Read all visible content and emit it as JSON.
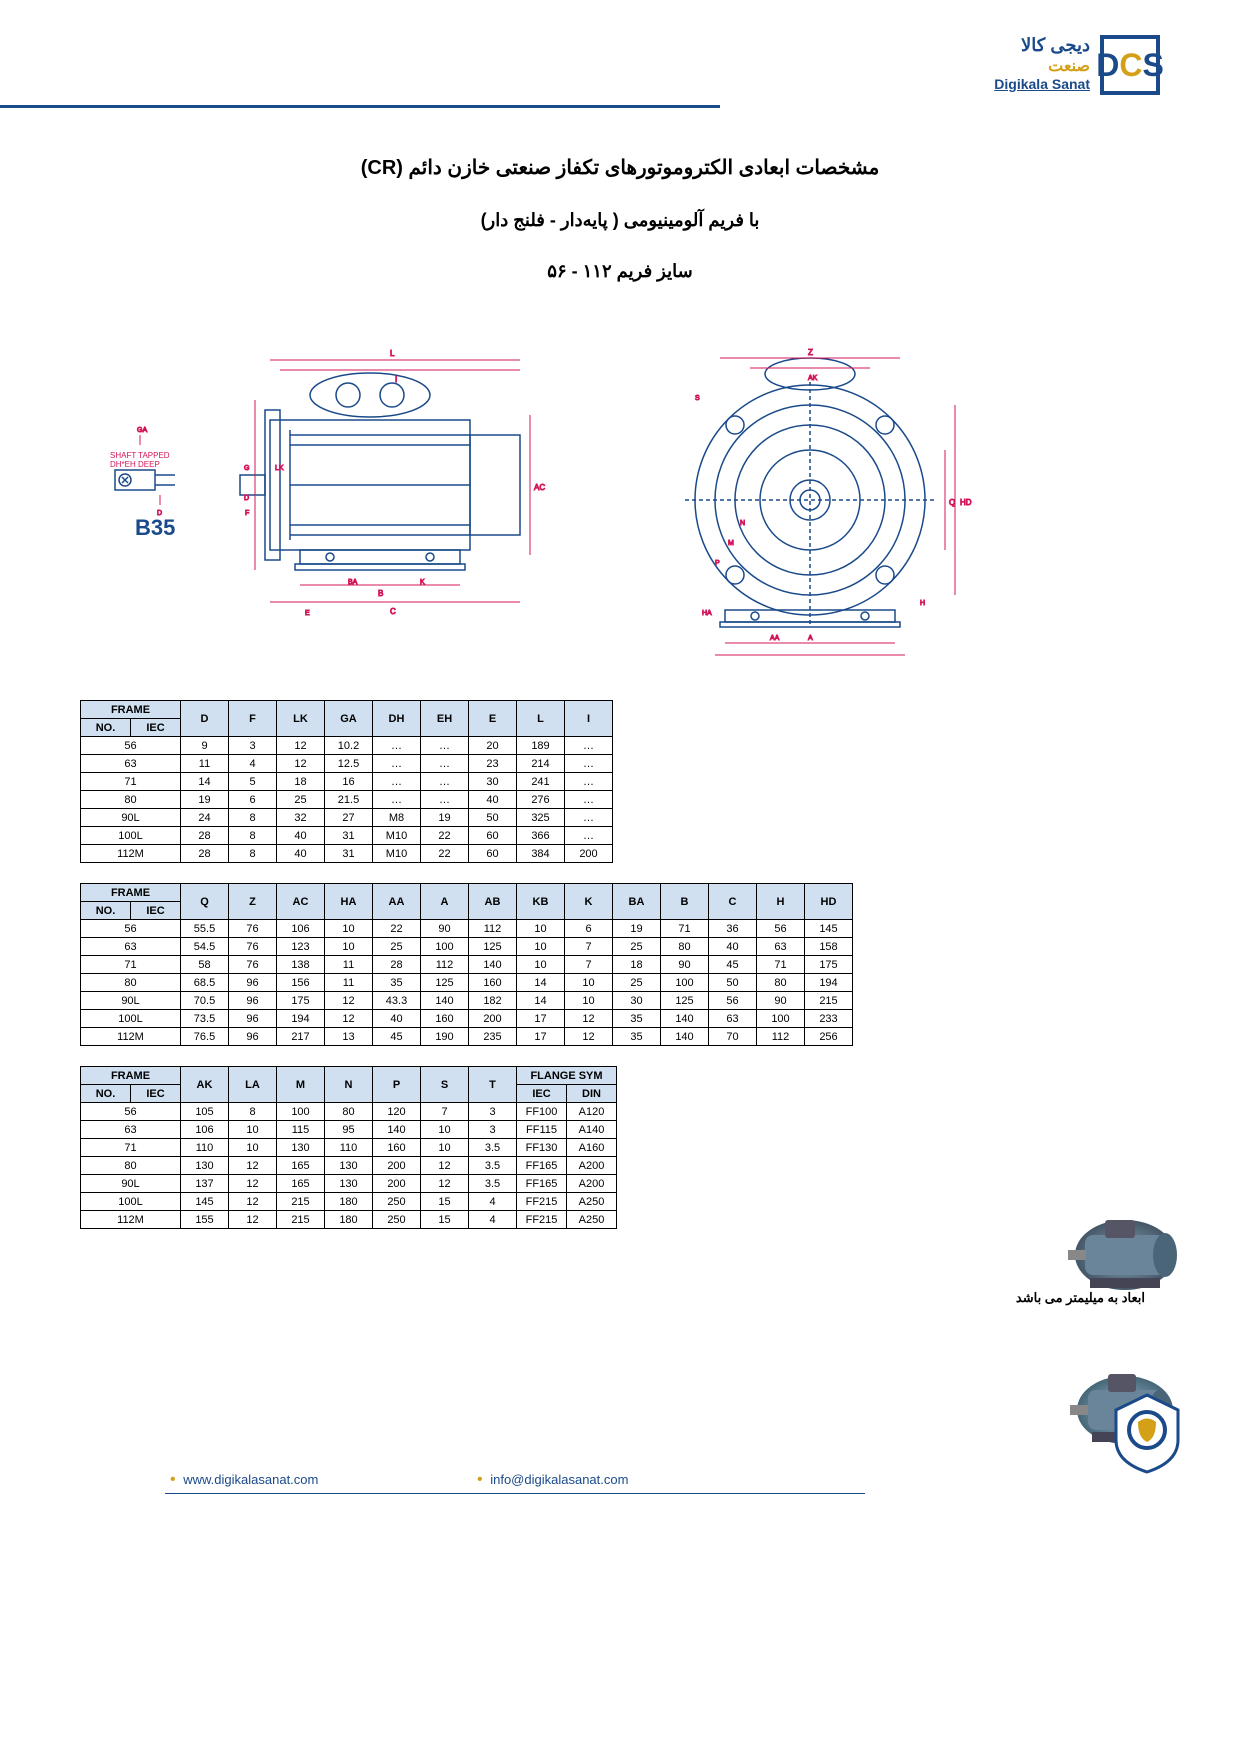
{
  "logo": {
    "line1": "دیجی کالا",
    "line2": "صنعت",
    "line3": "Digikala Sanat",
    "mark": "DCS"
  },
  "titles": {
    "t1": "مشخصات ابعادی الکتروموتورهای تکفاز صنعتی خازن دائم (CR)",
    "t2": "با فریم آلومینیومی ( پایه‌دار - فلنج دار)",
    "t3": "سایز فریم ۱۱۲ - ۵۶"
  },
  "diagram": {
    "label_b35": "B35",
    "label_shaft": "SHAFT TAPPED",
    "label_dh": "DH*EH DEEP",
    "colors": {
      "outline": "#1a4a8a",
      "dim": "#d4145a",
      "bg": "#ffffff"
    }
  },
  "table1": {
    "headers": [
      "D",
      "F",
      "LK",
      "GA",
      "DH",
      "EH",
      "E",
      "L",
      "I"
    ],
    "frame_label": "FRAME",
    "sub_no": "NO.",
    "sub_iec": "IEC",
    "rows": [
      {
        "frame": "56",
        "d": [
          9,
          3,
          12,
          "10.2",
          "…",
          "…",
          20,
          189,
          "…"
        ]
      },
      {
        "frame": "63",
        "d": [
          11,
          4,
          12,
          "12.5",
          "…",
          "…",
          23,
          214,
          "…"
        ]
      },
      {
        "frame": "71",
        "d": [
          14,
          5,
          18,
          16,
          "…",
          "…",
          30,
          241,
          "…"
        ]
      },
      {
        "frame": "80",
        "d": [
          19,
          6,
          25,
          "21.5",
          "…",
          "…",
          40,
          276,
          "…"
        ]
      },
      {
        "frame": "90L",
        "d": [
          24,
          8,
          32,
          27,
          "M8",
          19,
          50,
          325,
          "…"
        ]
      },
      {
        "frame": "100L",
        "d": [
          28,
          8,
          40,
          31,
          "M10",
          22,
          60,
          366,
          "…"
        ]
      },
      {
        "frame": "112M",
        "d": [
          28,
          8,
          40,
          31,
          "M10",
          22,
          60,
          384,
          200
        ]
      }
    ]
  },
  "table2": {
    "headers": [
      "Q",
      "Z",
      "AC",
      "HA",
      "AA",
      "A",
      "AB",
      "KB",
      "K",
      "BA",
      "B",
      "C",
      "H",
      "HD"
    ],
    "rows": [
      {
        "frame": "56",
        "d": [
          "55.5",
          76,
          106,
          10,
          22,
          90,
          112,
          10,
          6,
          19,
          71,
          36,
          56,
          145
        ]
      },
      {
        "frame": "63",
        "d": [
          "54.5",
          76,
          123,
          10,
          25,
          100,
          125,
          10,
          7,
          25,
          80,
          40,
          63,
          158
        ]
      },
      {
        "frame": "71",
        "d": [
          58,
          76,
          138,
          11,
          28,
          112,
          140,
          10,
          7,
          18,
          90,
          45,
          71,
          175
        ]
      },
      {
        "frame": "80",
        "d": [
          "68.5",
          96,
          156,
          11,
          35,
          125,
          160,
          14,
          10,
          25,
          100,
          50,
          80,
          194
        ]
      },
      {
        "frame": "90L",
        "d": [
          "70.5",
          96,
          175,
          12,
          "43.3",
          140,
          182,
          14,
          10,
          30,
          125,
          56,
          90,
          215
        ]
      },
      {
        "frame": "100L",
        "d": [
          "73.5",
          96,
          194,
          12,
          40,
          160,
          200,
          17,
          12,
          35,
          140,
          63,
          100,
          233
        ]
      },
      {
        "frame": "112M",
        "d": [
          "76.5",
          96,
          217,
          13,
          45,
          190,
          235,
          17,
          12,
          35,
          140,
          70,
          112,
          256
        ]
      }
    ]
  },
  "table3": {
    "headers": [
      "AK",
      "LA",
      "M",
      "N",
      "P",
      "S",
      "T"
    ],
    "flange_label": "FLANGE SYM",
    "flange_sub": [
      "IEC",
      "DIN"
    ],
    "rows": [
      {
        "frame": "56",
        "d": [
          105,
          8,
          100,
          80,
          120,
          7,
          3
        ],
        "f": [
          "FF100",
          "A120"
        ]
      },
      {
        "frame": "63",
        "d": [
          106,
          10,
          115,
          95,
          140,
          10,
          3
        ],
        "f": [
          "FF115",
          "A140"
        ]
      },
      {
        "frame": "71",
        "d": [
          110,
          10,
          130,
          110,
          160,
          10,
          "3.5"
        ],
        "f": [
          "FF130",
          "A160"
        ]
      },
      {
        "frame": "80",
        "d": [
          130,
          12,
          165,
          130,
          200,
          12,
          "3.5"
        ],
        "f": [
          "FF165",
          "A200"
        ]
      },
      {
        "frame": "90L",
        "d": [
          137,
          12,
          165,
          130,
          200,
          12,
          "3.5"
        ],
        "f": [
          "FF165",
          "A200"
        ]
      },
      {
        "frame": "100L",
        "d": [
          145,
          12,
          215,
          180,
          250,
          15,
          4
        ],
        "f": [
          "FF215",
          "A250"
        ]
      },
      {
        "frame": "112M",
        "d": [
          155,
          12,
          215,
          180,
          250,
          15,
          4
        ],
        "f": [
          "FF215",
          "A250"
        ]
      }
    ]
  },
  "note": "ابعاد به میلیمتر می باشد",
  "footer": {
    "web": "www.digikalasanat.com",
    "email": "info@digikalasanat.com"
  }
}
